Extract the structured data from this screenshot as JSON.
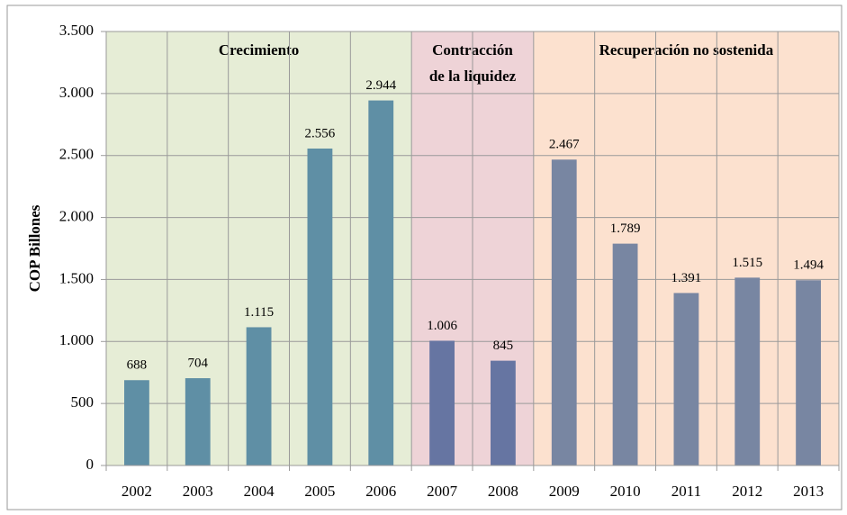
{
  "chart_data": {
    "type": "bar",
    "y_label": "COP Billones",
    "categories": [
      "2002",
      "2003",
      "2004",
      "2005",
      "2006",
      "2007",
      "2008",
      "2009",
      "2010",
      "2011",
      "2012",
      "2013"
    ],
    "values": [
      688,
      704,
      1115,
      2556,
      2944,
      1006,
      845,
      2467,
      1789,
      1391,
      1515,
      1494
    ],
    "value_labels": [
      "688",
      "704",
      "1.115",
      "2.556",
      "2.944",
      "1.006",
      "845",
      "2.467",
      "1.789",
      "1.391",
      "1.515",
      "1.494"
    ],
    "colors": [
      "#5f8fa5",
      "#5f8fa5",
      "#5f8fa5",
      "#5f8fa5",
      "#5f8fa5",
      "#6675a2",
      "#6675a2",
      "#7886a2",
      "#7886a2",
      "#7886a2",
      "#7886a2",
      "#7886a2"
    ],
    "ylim": [
      0,
      3500
    ],
    "yticks": [
      0,
      500,
      {
        "value": 1000,
        "label": "1.000"
      },
      {
        "value": 1500,
        "label": "1.500"
      },
      {
        "value": 2000,
        "label": "2.000"
      },
      {
        "value": 2500,
        "label": "2.500"
      },
      {
        "value": 3000,
        "label": "3.000"
      },
      {
        "value": 3500,
        "label": "3.500"
      }
    ],
    "grid": true,
    "regions": [
      {
        "label": [
          "Crecimiento"
        ],
        "from": "2002",
        "to": "2006",
        "color": "#e6edd6"
      },
      {
        "label": [
          "Contracción",
          "de la liquidez"
        ],
        "from": "2007",
        "to": "2008",
        "color": "#eed3d7"
      },
      {
        "label": [
          "Recuperación no sostenida"
        ],
        "from": "2009",
        "to": "2013",
        "color": "#fce1cf"
      }
    ]
  }
}
